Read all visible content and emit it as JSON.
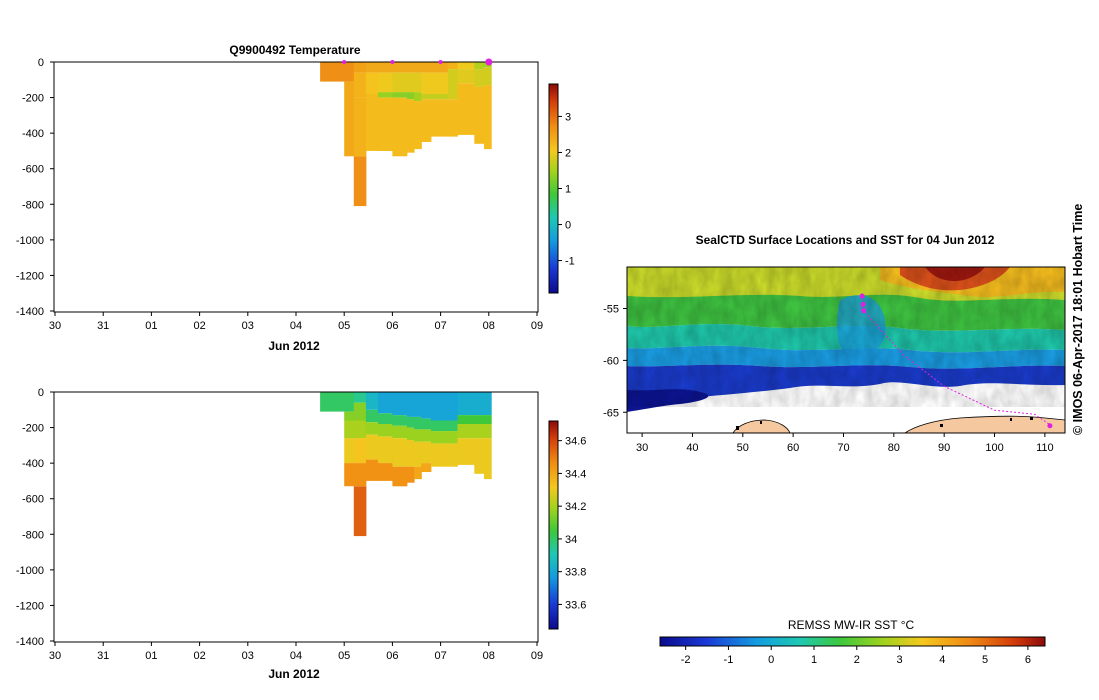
{
  "chart_data": [
    {
      "id": "temperature",
      "type": "heatmap",
      "title": "Q9900492  Temperature",
      "xlabel": "Jun 2012",
      "ylabel": "",
      "x_ticks": [
        "30",
        "31",
        "01",
        "02",
        "03",
        "04",
        "05",
        "06",
        "07",
        "08",
        "09"
      ],
      "y_ticks": [
        0,
        -200,
        -400,
        -600,
        -800,
        -1000,
        -1200,
        -1400
      ],
      "ylim": [
        -1420,
        0
      ],
      "colorbar": {
        "ticks": [
          -1,
          0,
          1,
          2,
          3
        ],
        "range": [
          -1.9,
          3.9
        ]
      },
      "profile_markers_day": [
        6,
        7,
        8,
        9
      ],
      "columns": [
        {
          "x0": 5.5,
          "x1": 6.0,
          "maxdepth": -110,
          "bands": [
            [
              0,
              -110,
              2.7
            ]
          ]
        },
        {
          "x0": 6.0,
          "x1": 6.2,
          "maxdepth": -530,
          "bands": [
            [
              0,
              -110,
              2.7
            ],
            [
              -110,
              -530,
              2.4
            ]
          ]
        },
        {
          "x0": 6.2,
          "x1": 6.45,
          "maxdepth": -810,
          "bands": [
            [
              0,
              -60,
              2.5
            ],
            [
              -60,
              -200,
              2.3
            ],
            [
              -200,
              -530,
              2.3
            ],
            [
              -530,
              -810,
              2.7
            ]
          ]
        },
        {
          "x0": 6.45,
          "x1": 6.7,
          "maxdepth": -500,
          "bands": [
            [
              0,
              -60,
              2.4
            ],
            [
              -60,
              -180,
              2.1
            ],
            [
              -180,
              -500,
              2.2
            ]
          ]
        },
        {
          "x0": 6.7,
          "x1": 7.0,
          "maxdepth": -500,
          "bands": [
            [
              0,
              -60,
              2.4
            ],
            [
              -60,
              -170,
              2.0
            ],
            [
              -170,
              -200,
              1.4
            ],
            [
              -200,
              -500,
              2.2
            ]
          ]
        },
        {
          "x0": 7.0,
          "x1": 7.3,
          "maxdepth": -530,
          "bands": [
            [
              0,
              -60,
              2.4
            ],
            [
              -60,
              -170,
              1.9
            ],
            [
              -170,
              -200,
              1.3
            ],
            [
              -200,
              -530,
              2.2
            ]
          ]
        },
        {
          "x0": 7.3,
          "x1": 7.45,
          "maxdepth": -510,
          "bands": [
            [
              0,
              -60,
              2.4
            ],
            [
              -60,
              -170,
              1.9
            ],
            [
              -170,
              -210,
              1.3
            ],
            [
              -210,
              -510,
              2.2
            ]
          ]
        },
        {
          "x0": 7.45,
          "x1": 7.6,
          "maxdepth": -490,
          "bands": [
            [
              0,
              -60,
              2.4
            ],
            [
              -60,
              -170,
              1.9
            ],
            [
              -170,
              -220,
              1.5
            ],
            [
              -220,
              -490,
              2.2
            ]
          ]
        },
        {
          "x0": 7.6,
          "x1": 7.8,
          "maxdepth": -450,
          "bands": [
            [
              0,
              -60,
              2.4
            ],
            [
              -60,
              -180,
              2.0
            ],
            [
              -180,
              -210,
              1.7
            ],
            [
              -210,
              -450,
              2.2
            ]
          ]
        },
        {
          "x0": 7.8,
          "x1": 8.15,
          "maxdepth": -420,
          "bands": [
            [
              0,
              -60,
              2.4
            ],
            [
              -60,
              -180,
              2.0
            ],
            [
              -180,
              -210,
              1.7
            ],
            [
              -210,
              -420,
              2.2
            ]
          ]
        },
        {
          "x0": 8.15,
          "x1": 8.35,
          "maxdepth": -420,
          "bands": [
            [
              0,
              -40,
              2.3
            ],
            [
              -40,
              -210,
              1.8
            ],
            [
              -210,
              -420,
              2.2
            ]
          ]
        },
        {
          "x0": 8.35,
          "x1": 8.7,
          "maxdepth": -410,
          "bands": [
            [
              0,
              -40,
              2.0
            ],
            [
              -40,
              -120,
              1.9
            ],
            [
              -120,
              -410,
              2.2
            ]
          ]
        },
        {
          "x0": 8.7,
          "x1": 8.9,
          "maxdepth": -460,
          "bands": [
            [
              0,
              -40,
              1.6
            ],
            [
              -40,
              -140,
              1.8
            ],
            [
              -140,
              -460,
              2.2
            ]
          ]
        },
        {
          "x0": 8.9,
          "x1": 9.05,
          "maxdepth": -490,
          "bands": [
            [
              0,
              -30,
              1.5
            ],
            [
              -30,
              -130,
              1.8
            ],
            [
              -130,
              -490,
              2.2
            ]
          ]
        }
      ]
    },
    {
      "id": "salinity",
      "type": "heatmap",
      "title": "",
      "xlabel": "Jun 2012",
      "ylabel": "",
      "x_ticks": [
        "30",
        "31",
        "01",
        "02",
        "03",
        "04",
        "05",
        "06",
        "07",
        "08",
        "09"
      ],
      "y_ticks": [
        0,
        -200,
        -400,
        -600,
        -800,
        -1000,
        -1200,
        -1400
      ],
      "ylim": [
        -1420,
        0
      ],
      "colorbar": {
        "ticks": [
          33.6,
          33.8,
          34,
          34.2,
          34.4,
          34.6
        ],
        "range": [
          33.45,
          34.72
        ]
      },
      "columns": [
        {
          "x0": 5.5,
          "x1": 6.0,
          "maxdepth": -110,
          "bands": [
            [
              0,
              -110,
              34.0
            ]
          ]
        },
        {
          "x0": 6.0,
          "x1": 6.2,
          "maxdepth": -530,
          "bands": [
            [
              0,
              -110,
              34.0
            ],
            [
              -110,
              -160,
              34.15
            ],
            [
              -160,
              -260,
              34.2
            ],
            [
              -260,
              -400,
              34.3
            ],
            [
              -400,
              -530,
              34.45
            ]
          ]
        },
        {
          "x0": 6.2,
          "x1": 6.45,
          "maxdepth": -810,
          "bands": [
            [
              0,
              -60,
              33.95
            ],
            [
              -60,
              -160,
              34.15
            ],
            [
              -160,
              -260,
              34.2
            ],
            [
              -260,
              -400,
              34.32
            ],
            [
              -400,
              -530,
              34.45
            ],
            [
              -530,
              -810,
              34.55
            ]
          ]
        },
        {
          "x0": 6.45,
          "x1": 6.7,
          "maxdepth": -500,
          "bands": [
            [
              0,
              -100,
              33.85
            ],
            [
              -100,
              -170,
              34.0
            ],
            [
              -170,
              -240,
              34.18
            ],
            [
              -240,
              -380,
              34.3
            ],
            [
              -380,
              -500,
              34.45
            ]
          ]
        },
        {
          "x0": 6.7,
          "x1": 7.0,
          "maxdepth": -500,
          "bands": [
            [
              0,
              -120,
              33.8
            ],
            [
              -120,
              -180,
              34.0
            ],
            [
              -180,
              -250,
              34.18
            ],
            [
              -250,
              -400,
              34.3
            ],
            [
              -400,
              -500,
              34.45
            ]
          ]
        },
        {
          "x0": 7.0,
          "x1": 7.3,
          "maxdepth": -530,
          "bands": [
            [
              0,
              -130,
              33.8
            ],
            [
              -130,
              -190,
              34.0
            ],
            [
              -190,
              -260,
              34.18
            ],
            [
              -260,
              -420,
              34.3
            ],
            [
              -420,
              -530,
              34.45
            ]
          ]
        },
        {
          "x0": 7.3,
          "x1": 7.45,
          "maxdepth": -510,
          "bands": [
            [
              0,
              -140,
              33.8
            ],
            [
              -140,
              -200,
              34.0
            ],
            [
              -200,
              -270,
              34.18
            ],
            [
              -270,
              -420,
              34.3
            ],
            [
              -420,
              -510,
              34.45
            ]
          ]
        },
        {
          "x0": 7.45,
          "x1": 7.6,
          "maxdepth": -490,
          "bands": [
            [
              0,
              -140,
              33.8
            ],
            [
              -140,
              -210,
              34.0
            ],
            [
              -210,
              -280,
              34.18
            ],
            [
              -280,
              -420,
              34.3
            ],
            [
              -420,
              -490,
              34.4
            ]
          ]
        },
        {
          "x0": 7.6,
          "x1": 7.8,
          "maxdepth": -450,
          "bands": [
            [
              0,
              -150,
              33.8
            ],
            [
              -150,
              -210,
              34.0
            ],
            [
              -210,
              -280,
              34.18
            ],
            [
              -280,
              -400,
              34.3
            ],
            [
              -400,
              -450,
              34.4
            ]
          ]
        },
        {
          "x0": 7.8,
          "x1": 8.15,
          "maxdepth": -420,
          "bands": [
            [
              0,
              -160,
              33.8
            ],
            [
              -160,
              -220,
              34.0
            ],
            [
              -220,
              -290,
              34.18
            ],
            [
              -290,
              -420,
              34.3
            ]
          ]
        },
        {
          "x0": 8.15,
          "x1": 8.35,
          "maxdepth": -420,
          "bands": [
            [
              0,
              -160,
              33.8
            ],
            [
              -160,
              -220,
              34.0
            ],
            [
              -220,
              -290,
              34.18
            ],
            [
              -290,
              -420,
              34.3
            ]
          ]
        },
        {
          "x0": 8.35,
          "x1": 8.7,
          "maxdepth": -410,
          "bands": [
            [
              0,
              -130,
              33.82
            ],
            [
              -130,
              -180,
              34.05
            ],
            [
              -180,
              -260,
              34.2
            ],
            [
              -260,
              -410,
              34.3
            ]
          ]
        },
        {
          "x0": 8.7,
          "x1": 8.9,
          "maxdepth": -460,
          "bands": [
            [
              0,
              -130,
              33.82
            ],
            [
              -130,
              -180,
              34.05
            ],
            [
              -180,
              -260,
              34.2
            ],
            [
              -260,
              -460,
              34.3
            ]
          ]
        },
        {
          "x0": 8.9,
          "x1": 9.05,
          "maxdepth": -490,
          "bands": [
            [
              0,
              -130,
              33.82
            ],
            [
              -130,
              -180,
              34.05
            ],
            [
              -180,
              -260,
              34.2
            ],
            [
              -260,
              -490,
              34.3
            ]
          ]
        }
      ]
    },
    {
      "id": "sst_map",
      "type": "heatmap",
      "title": "SealCTD Surface Locations and SST for 04 Jun 2012",
      "x_ticks": [
        30,
        40,
        50,
        60,
        70,
        80,
        90,
        100,
        110
      ],
      "y_ticks": [
        -55,
        -60,
        -65
      ],
      "xlim": [
        27,
        114
      ],
      "ylim": [
        -67,
        -51
      ],
      "colorbar": {
        "label": "REMSS MW-IR SST °C",
        "ticks": [
          -2,
          -1,
          0,
          1,
          2,
          3,
          4,
          5,
          6
        ],
        "range": [
          -2.6,
          6.4
        ]
      },
      "track_points": [
        [
          73.5,
          -53.6
        ],
        [
          73.8,
          -54.4
        ],
        [
          73.6,
          -55.0
        ],
        [
          82,
          -59.5
        ],
        [
          90,
          -62.5
        ],
        [
          100,
          -64.8
        ],
        [
          108,
          -65.2
        ],
        [
          111,
          -66.2
        ]
      ],
      "track_markers": [
        [
          73.7,
          -53.8
        ],
        [
          73.9,
          -54.6
        ],
        [
          74.0,
          -55.2
        ],
        [
          111,
          -66.3
        ]
      ]
    }
  ],
  "footer_text": "© IMOS 06-Apr-2017 18:01 Hobart Time"
}
